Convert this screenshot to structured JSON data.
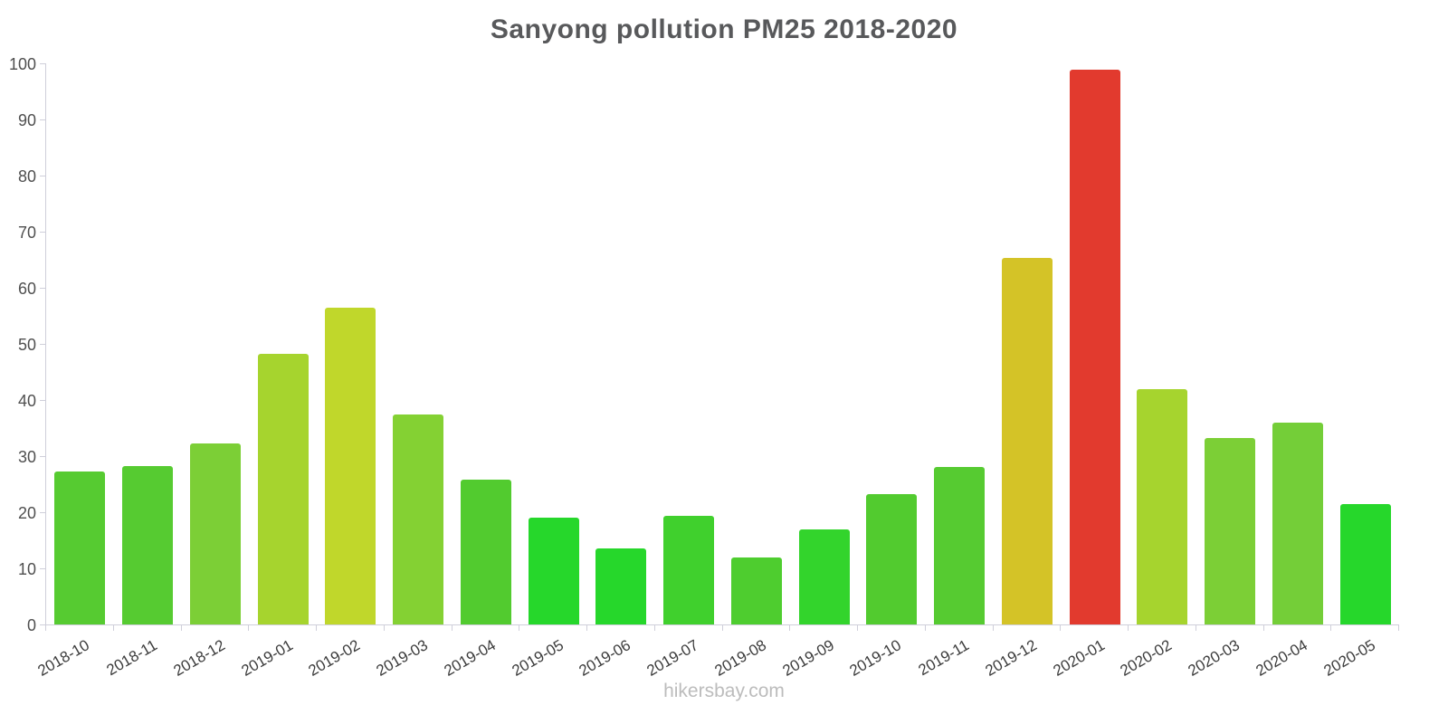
{
  "page": {
    "footer": "hikersbay.com"
  },
  "chart_data": {
    "type": "bar",
    "title": "Sanyong pollution PM25 2018-2020",
    "xlabel": "",
    "ylabel": "",
    "ylim": [
      0,
      100
    ],
    "yticks": [
      0,
      10,
      20,
      30,
      40,
      50,
      60,
      70,
      80,
      90,
      100
    ],
    "grid": false,
    "legend": "none",
    "categories": [
      "2018-10",
      "2018-11",
      "2018-12",
      "2019-01",
      "2019-02",
      "2019-03",
      "2019-04",
      "2019-05",
      "2019-06",
      "2019-07",
      "2019-08",
      "2019-09",
      "2019-10",
      "2019-11",
      "2019-12",
      "2020-01",
      "2020-02",
      "2020-03",
      "2020-04",
      "2020-05"
    ],
    "values": [
      27.2,
      28.2,
      32.3,
      48.3,
      56.5,
      37.5,
      25.8,
      19.1,
      13.6,
      19.3,
      12.0,
      16.9,
      23.2,
      28.1,
      65.4,
      98.8,
      42.0,
      33.3,
      36.0,
      21.4
    ],
    "colors": [
      "#56cb31",
      "#56cb31",
      "#7ccf36",
      "#a6d42e",
      "#c0d72b",
      "#84d133",
      "#52cb2f",
      "#26d72b",
      "#26d72b",
      "#40d02d",
      "#4ecd2f",
      "#33d42c",
      "#52cb2f",
      "#56cb31",
      "#d4c327",
      "#e23a2e",
      "#a6d42e",
      "#7ccf36",
      "#74ce38",
      "#26d72b"
    ]
  }
}
